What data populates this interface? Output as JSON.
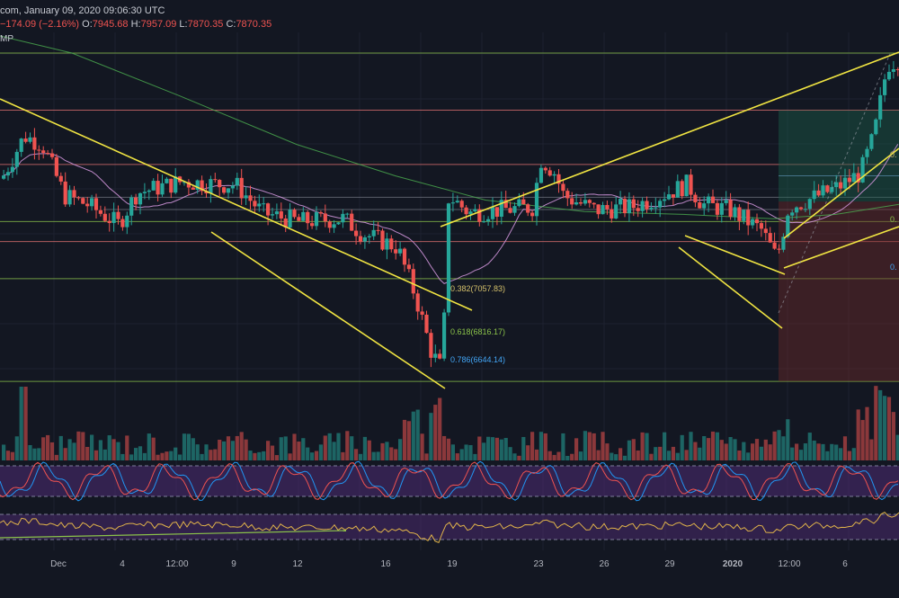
{
  "header": {
    "title": "com, January 09, 2020 09:06:30 UTC",
    "change": "−174.09 (−2.16%)",
    "o_key": "O:",
    "o": "7945.68",
    "h_key": "H:",
    "h": "7957.09",
    "l_key": "L:",
    "l": "7870.35",
    "c_key": "C:",
    "c": "7870.35",
    "mp_label": "MP"
  },
  "colors": {
    "background": "#131722",
    "up": "#26a69a",
    "down": "#ef5350",
    "trendline": "#f0e442",
    "support": "#8bc34a",
    "resistance": "#e57373",
    "ma_slow": "#4caf50",
    "ma_fast": "#ce93d8",
    "osc_fill": "#4a2a6e",
    "stoch_k": "#2196f3",
    "stoch_d": "#ef5350",
    "rsi": "#e0b34a"
  },
  "chart_data": {
    "type": "candlestick",
    "symbol_interval": "4H",
    "x_labels": [
      "Dec",
      "4",
      "12:00",
      "9",
      "12",
      "16",
      "19",
      "23",
      "26",
      "29",
      "2020",
      "12:00",
      "6"
    ],
    "fib_labels": [
      {
        "text": "0.382(7057.83)",
        "color": "#d4c06b"
      },
      {
        "text": "0.618(6816.17)",
        "color": "#8bc34a"
      },
      {
        "text": "0.786(6644.14)",
        "color": "#42a5f5"
      }
    ],
    "right_fib_labels": [
      "0.",
      "0.",
      "0."
    ],
    "horizontal_levels": {
      "support_green": [
        7620,
        7030,
        6830,
        6470
      ],
      "resistance_red": [
        7420,
        7230,
        6960
      ],
      "gray": [
        7115,
        7072
      ]
    },
    "indicators": [
      "Volume",
      "Stochastic RSI",
      "RSI"
    ]
  }
}
